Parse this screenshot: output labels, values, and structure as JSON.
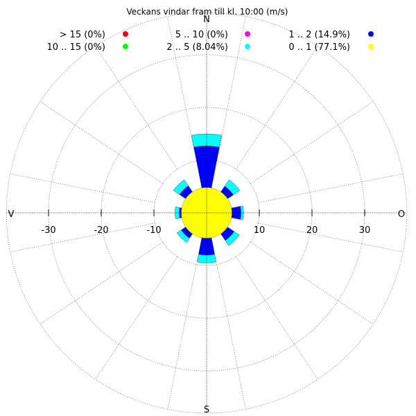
{
  "chart_data": {
    "type": "windrose",
    "title": "Veckans vindar fram till kl. 10:00 (m/s)",
    "directions": {
      "north": "N",
      "south": "S",
      "east": "O",
      "west": "V"
    },
    "axis_range": [
      -38,
      38
    ],
    "ticks": [
      -30,
      -20,
      -10,
      10,
      20,
      30
    ],
    "ring_values": [
      10,
      20,
      30
    ],
    "outer_ring": 38,
    "sectors": 16,
    "grid": true,
    "legend_position": "top",
    "legend": [
      {
        "label": "> 15 (0%)",
        "color": "#ff0000"
      },
      {
        "label": "5 .. 10 (0%)",
        "color": "#ff00ff"
      },
      {
        "label": "1 .. 2 (14.9%)",
        "color": "#0000ff"
      },
      {
        "label": "10 .. 15 (0%)",
        "color": "#00ff00"
      },
      {
        "label": "2 .. 5 (8.04%)",
        "color": "#00ffff"
      },
      {
        "label": "0 .. 1 (77.1%)",
        "color": "#ffff00"
      }
    ],
    "calm_radius": 4.8,
    "petals": [
      {
        "direction": "N",
        "angle": 0,
        "blue": 12.7,
        "cyan": 15.0
      },
      {
        "direction": "NO",
        "angle": 45,
        "blue": 6.1,
        "cyan": 7.6
      },
      {
        "direction": "O",
        "angle": 90,
        "blue": 6.5,
        "cyan": 7.0
      },
      {
        "direction": "SO",
        "angle": 135,
        "blue": 6.3,
        "cyan": 7.5
      },
      {
        "direction": "S",
        "angle": 180,
        "blue": 8.0,
        "cyan": 9.5
      },
      {
        "direction": "SV",
        "angle": 225,
        "blue": 5.8,
        "cyan": 6.8
      },
      {
        "direction": "V",
        "angle": 270,
        "blue": 5.2,
        "cyan": 6.0
      },
      {
        "direction": "NV",
        "angle": 315,
        "blue": 6.2,
        "cyan": 7.6
      }
    ],
    "colors": {
      "calm": "#ffff00",
      "blue": "#0000ff",
      "cyan": "#00ffff",
      "grid": "#666666"
    }
  }
}
